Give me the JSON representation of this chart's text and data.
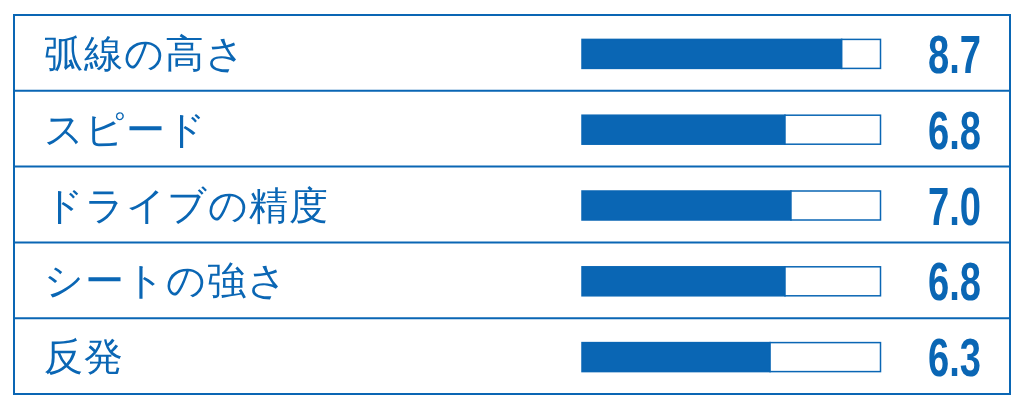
{
  "chart_data": {
    "type": "bar",
    "orientation": "horizontal",
    "stacked": true,
    "categories": [
      "弧線の高さ",
      "スピード",
      "ドライブの精度",
      "シートの強さ",
      "反発"
    ],
    "series": [
      {
        "color": "#0a66b4",
        "values": [
          8.7,
          6.8,
          7.0,
          6.8,
          6.3
        ],
        "value_labels": [
          "8.7",
          "6.8",
          "7.0",
          "6.8",
          "6.3"
        ]
      },
      {
        "color": "#ffffff",
        "values": [
          1.3,
          3.2,
          3.0,
          3.2,
          3.7
        ]
      }
    ],
    "xlim": [
      0,
      10
    ],
    "tick_labels": "y"
  }
}
